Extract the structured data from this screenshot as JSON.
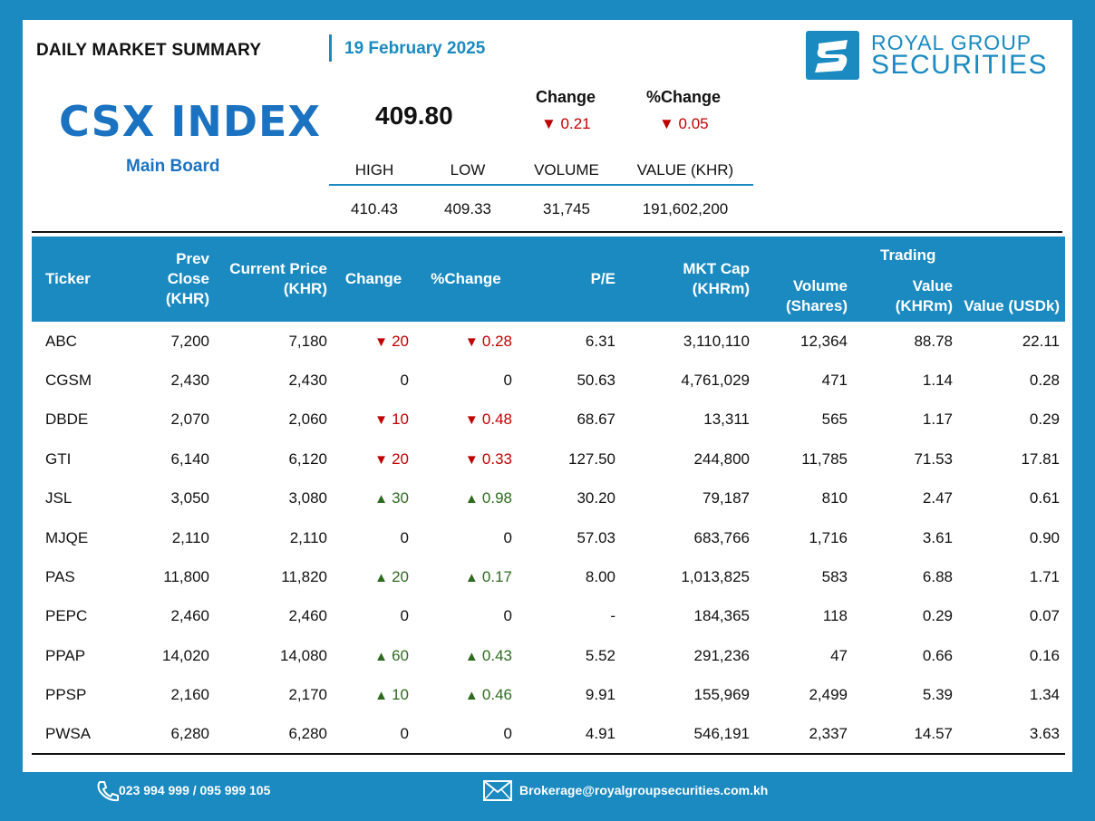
{
  "header": {
    "title": "DAILY MARKET SUMMARY",
    "date": "19 February 2025"
  },
  "logo": {
    "line1": "ROYAL GROUP",
    "line2": "SECURITIES"
  },
  "index": {
    "name": "CSX INDEX",
    "board": "Main Board",
    "value": "409.80",
    "change_label": "Change",
    "pct_change_label": "%Change",
    "change": "▼ 0.21",
    "pct_change": "▼ 0.05"
  },
  "stats": {
    "headers": [
      "HIGH",
      "LOW",
      "VOLUME",
      "VALUE (KHR)"
    ],
    "values": [
      "410.43",
      "409.33",
      "31,745",
      "191,602,200"
    ]
  },
  "table": {
    "trading_label": "Trading",
    "headers": {
      "ticker": "Ticker",
      "prev_close": "Prev Close (KHR)",
      "current_price": "Current Price (KHR)",
      "change": "Change",
      "pct_change": "%Change",
      "pe": "P/E",
      "mkt_cap": "MKT Cap (KHRm)",
      "volume": "Volume (Shares)",
      "value_khr": "Value (KHRm)",
      "value_usd": "Value (USDk)"
    },
    "rows": [
      {
        "ticker": "ABC",
        "prev": "7,200",
        "cur": "7,180",
        "dir": "down",
        "chg": "20",
        "pct": "0.28",
        "pe": "6.31",
        "cap": "3,110,110",
        "vol": "12,364",
        "vkhr": "88.78",
        "vusd": "22.11"
      },
      {
        "ticker": "CGSM",
        "prev": "2,430",
        "cur": "2,430",
        "dir": "flat",
        "chg": "0",
        "pct": "0",
        "pe": "50.63",
        "cap": "4,761,029",
        "vol": "471",
        "vkhr": "1.14",
        "vusd": "0.28"
      },
      {
        "ticker": "DBDE",
        "prev": "2,070",
        "cur": "2,060",
        "dir": "down",
        "chg": "10",
        "pct": "0.48",
        "pe": "68.67",
        "cap": "13,311",
        "vol": "565",
        "vkhr": "1.17",
        "vusd": "0.29"
      },
      {
        "ticker": "GTI",
        "prev": "6,140",
        "cur": "6,120",
        "dir": "down",
        "chg": "20",
        "pct": "0.33",
        "pe": "127.50",
        "cap": "244,800",
        "vol": "11,785",
        "vkhr": "71.53",
        "vusd": "17.81"
      },
      {
        "ticker": "JSL",
        "prev": "3,050",
        "cur": "3,080",
        "dir": "up",
        "chg": "30",
        "pct": "0.98",
        "pe": "30.20",
        "cap": "79,187",
        "vol": "810",
        "vkhr": "2.47",
        "vusd": "0.61"
      },
      {
        "ticker": "MJQE",
        "prev": "2,110",
        "cur": "2,110",
        "dir": "flat",
        "chg": "0",
        "pct": "0",
        "pe": "57.03",
        "cap": "683,766",
        "vol": "1,716",
        "vkhr": "3.61",
        "vusd": "0.90"
      },
      {
        "ticker": "PAS",
        "prev": "11,800",
        "cur": "11,820",
        "dir": "up",
        "chg": "20",
        "pct": "0.17",
        "pe": "8.00",
        "cap": "1,013,825",
        "vol": "583",
        "vkhr": "6.88",
        "vusd": "1.71"
      },
      {
        "ticker": "PEPC",
        "prev": "2,460",
        "cur": "2,460",
        "dir": "flat",
        "chg": "0",
        "pct": "0",
        "pe": "-",
        "cap": "184,365",
        "vol": "118",
        "vkhr": "0.29",
        "vusd": "0.07"
      },
      {
        "ticker": "PPAP",
        "prev": "14,020",
        "cur": "14,080",
        "dir": "up",
        "chg": "60",
        "pct": "0.43",
        "pe": "5.52",
        "cap": "291,236",
        "vol": "47",
        "vkhr": "0.66",
        "vusd": "0.16"
      },
      {
        "ticker": "PPSP",
        "prev": "2,160",
        "cur": "2,170",
        "dir": "up",
        "chg": "10",
        "pct": "0.46",
        "pe": "9.91",
        "cap": "155,969",
        "vol": "2,499",
        "vkhr": "5.39",
        "vusd": "1.34"
      },
      {
        "ticker": "PWSA",
        "prev": "6,280",
        "cur": "6,280",
        "dir": "flat",
        "chg": "0",
        "pct": "0",
        "pe": "4.91",
        "cap": "546,191",
        "vol": "2,337",
        "vkhr": "14.57",
        "vusd": "3.63"
      }
    ]
  },
  "footer": {
    "phone": "023 994 999 / 095 999 105",
    "email": "Brokerage@royalgroupsecurities.com.kh"
  },
  "colors": {
    "brand": "#1a8ac0",
    "down": "#c00000",
    "up": "#2e6b1f"
  }
}
